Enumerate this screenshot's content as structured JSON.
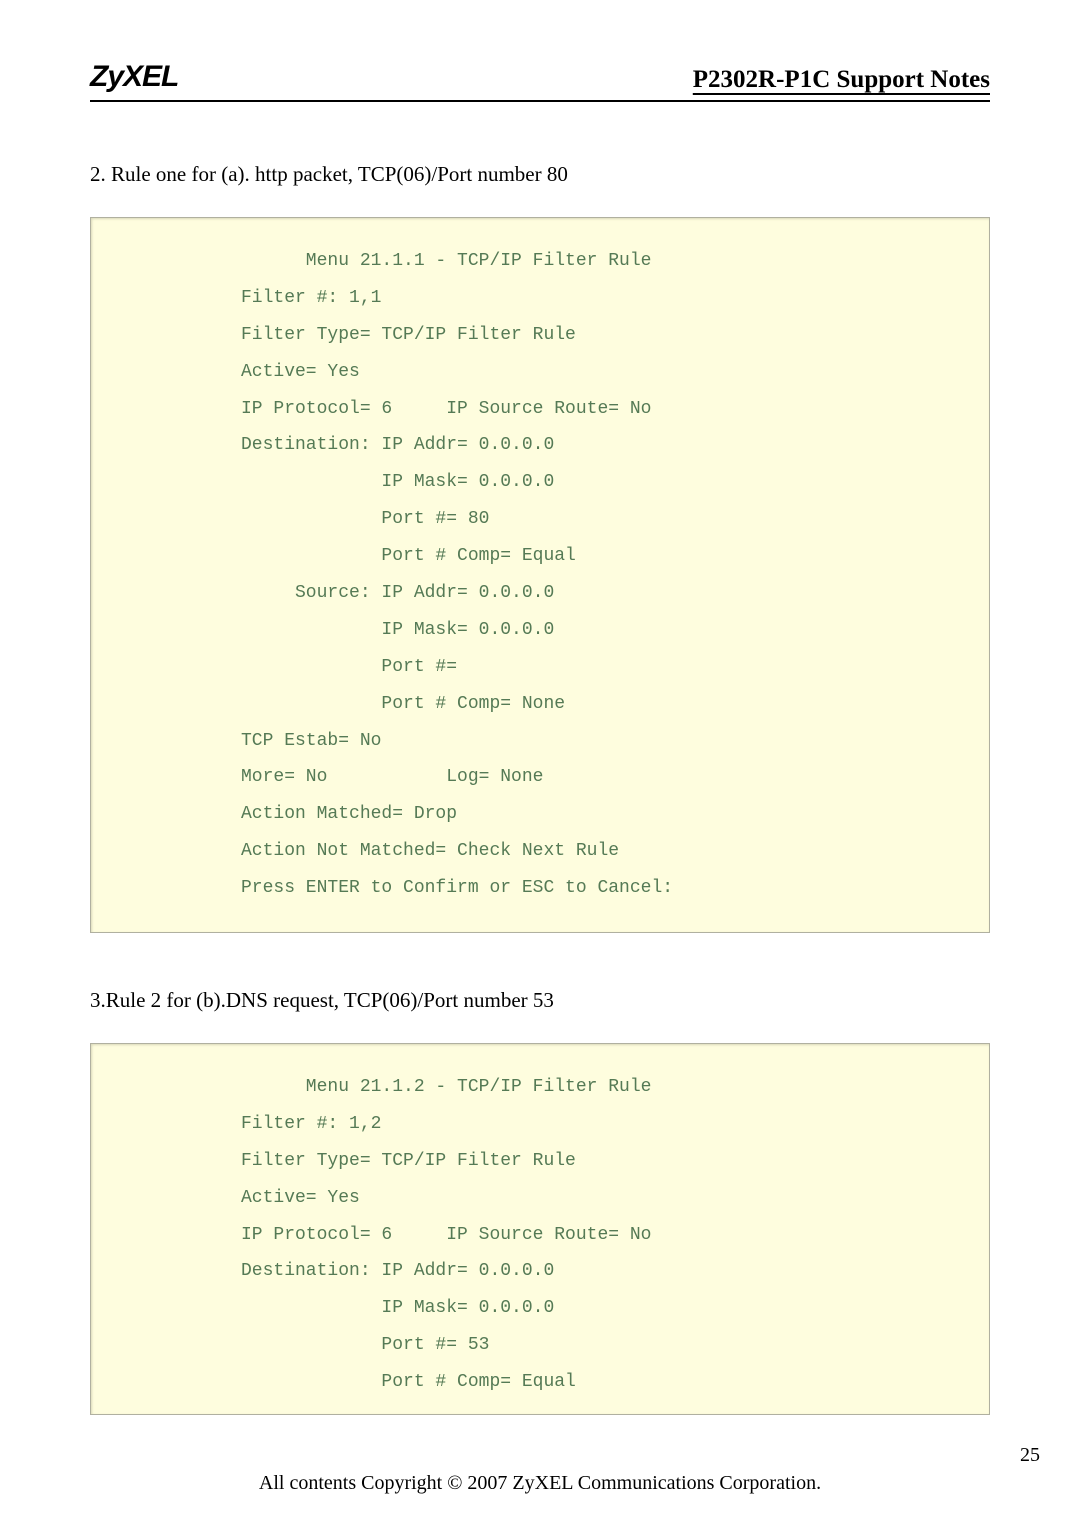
{
  "header": {
    "logo": "ZyXEL",
    "title": "P2302R-P1C Support Notes"
  },
  "section1": {
    "intro": "2. Rule one for (a). http packet, TCP(06)/Port number 80",
    "code": "      Menu 21.1.1 - TCP/IP Filter Rule\nFilter #: 1,1\nFilter Type= TCP/IP Filter Rule\nActive= Yes\nIP Protocol= 6     IP Source Route= No\nDestination: IP Addr= 0.0.0.0\n             IP Mask= 0.0.0.0\n             Port #= 80\n             Port # Comp= Equal\n     Source: IP Addr= 0.0.0.0\n             IP Mask= 0.0.0.0\n             Port #=\n             Port # Comp= None\nTCP Estab= No\nMore= No           Log= None\nAction Matched= Drop\nAction Not Matched= Check Next Rule\nPress ENTER to Confirm or ESC to Cancel:"
  },
  "section2": {
    "intro": "3.Rule 2 for (b).DNS request, TCP(06)/Port number 53",
    "code": "      Menu 21.1.2 - TCP/IP Filter Rule\nFilter #: 1,2\nFilter Type= TCP/IP Filter Rule\nActive= Yes\nIP Protocol= 6     IP Source Route= No\nDestination: IP Addr= 0.0.0.0\n             IP Mask= 0.0.0.0\n             Port #= 53\n             Port # Comp= Equal"
  },
  "footer": {
    "pagenum": "25",
    "copyright": "All contents Copyright © 2007 ZyXEL Communications Corporation."
  }
}
